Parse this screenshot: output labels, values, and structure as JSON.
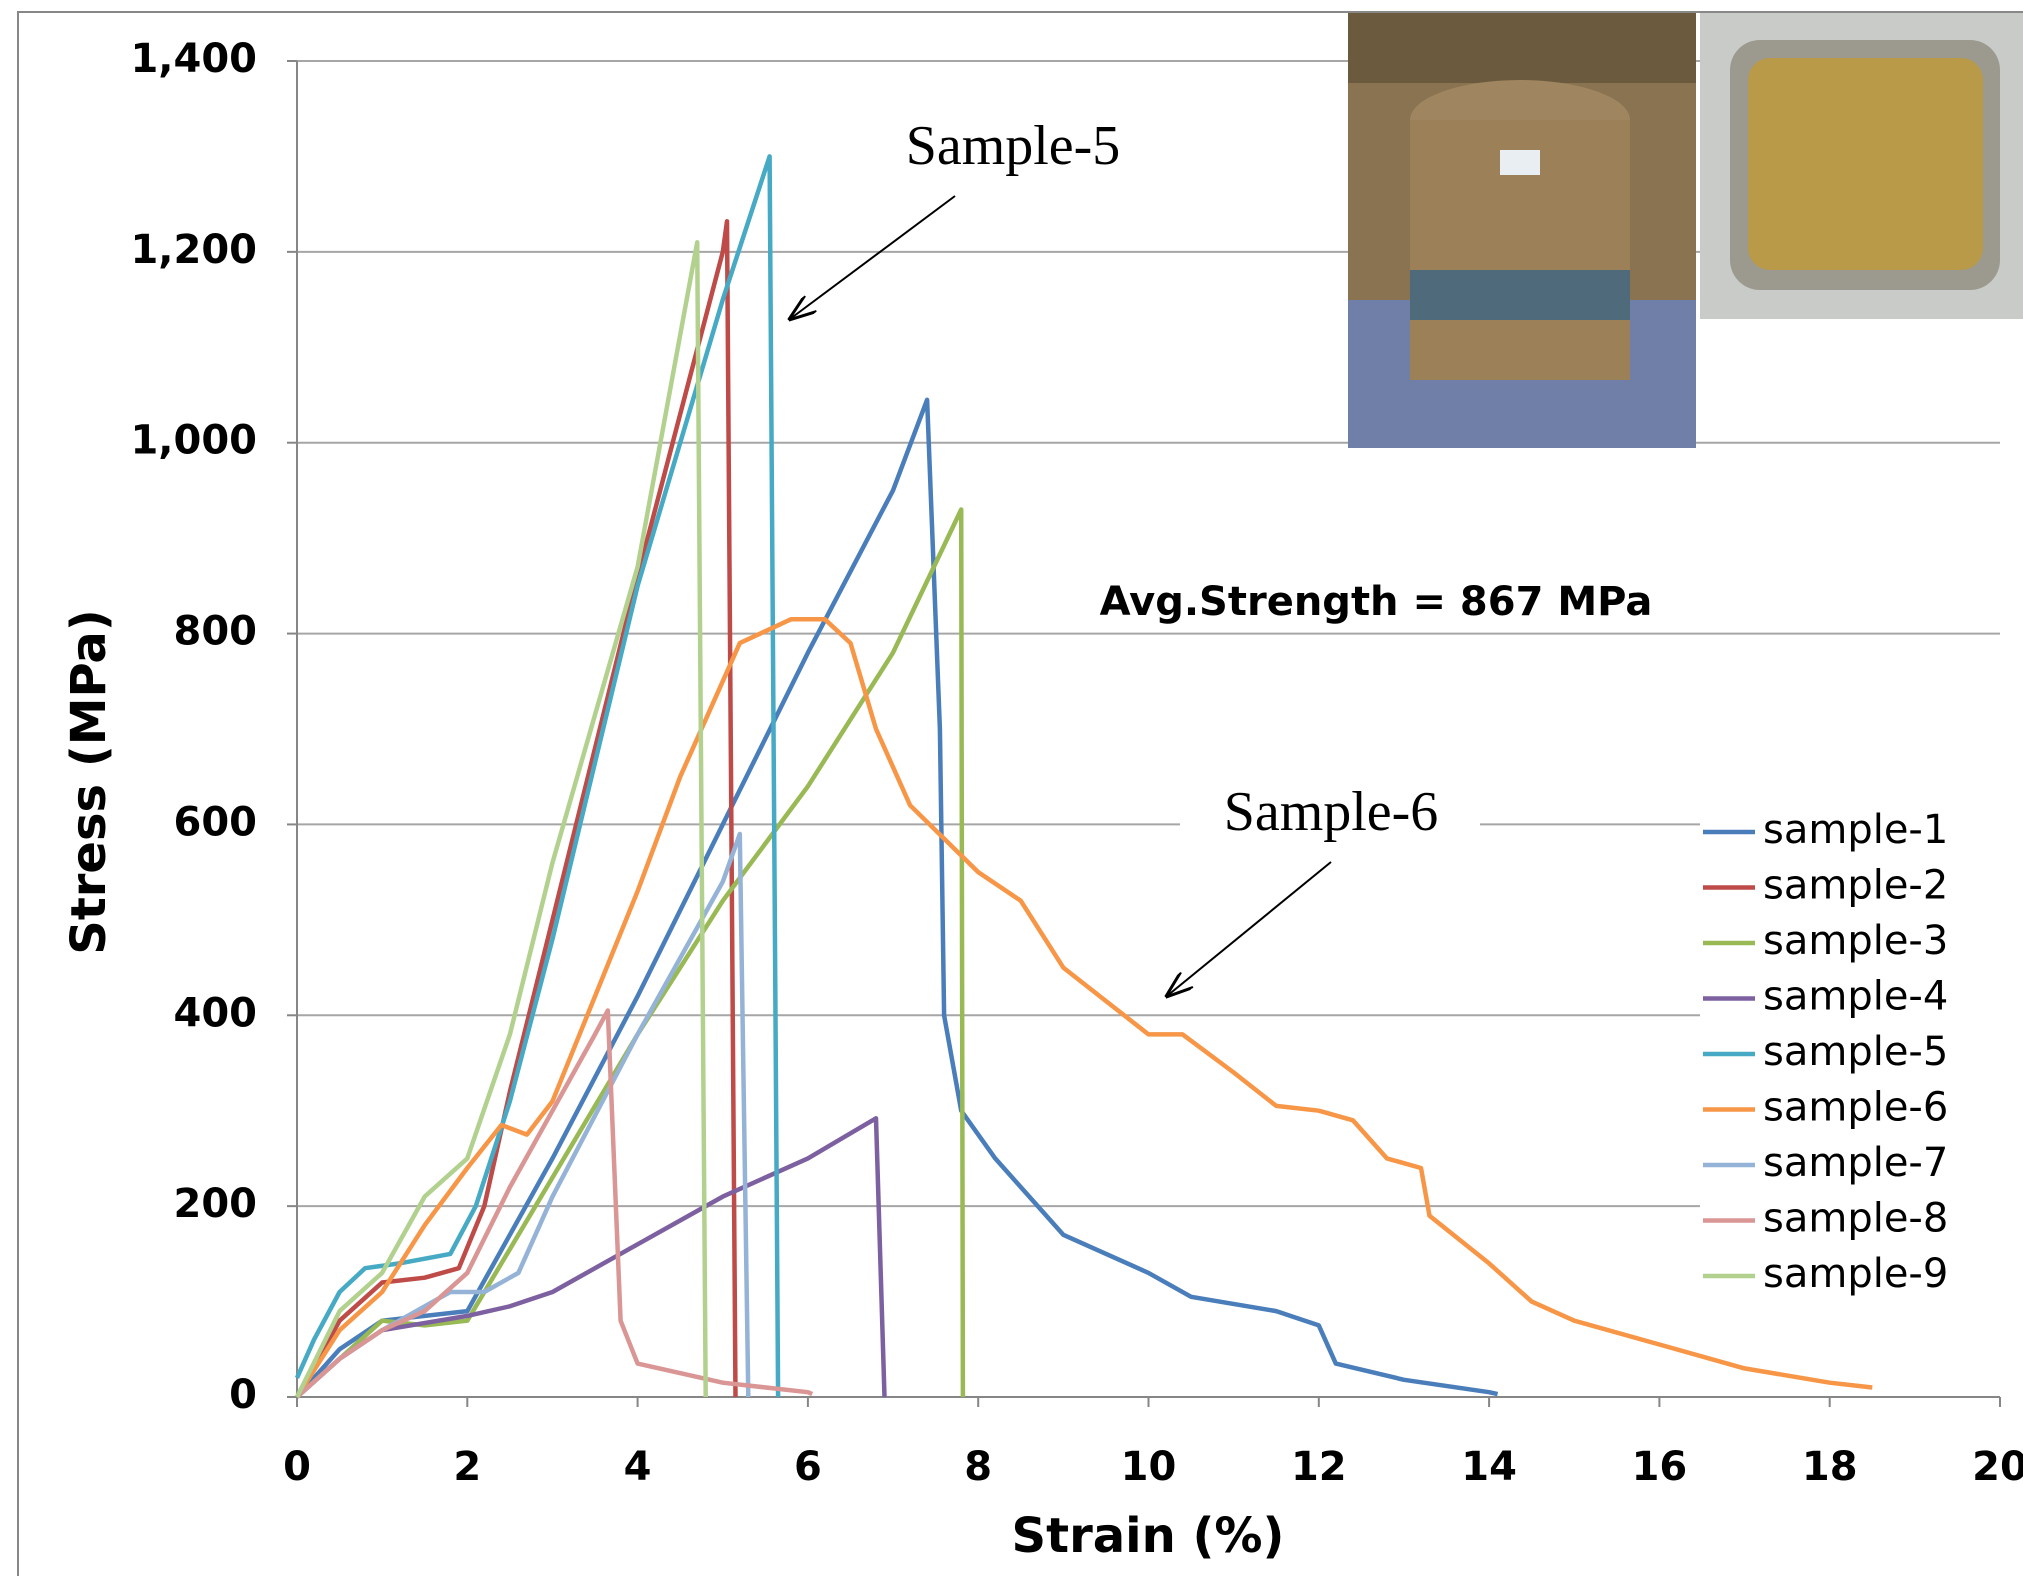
{
  "chart_data": {
    "type": "line",
    "x_label": "Strain (%)",
    "y_label": "Stress (MPa)",
    "xlim": [
      0,
      20
    ],
    "xticks": [
      0,
      2,
      4,
      6,
      8,
      10,
      12,
      14,
      16,
      18,
      20
    ],
    "ylim": [
      0,
      1400
    ],
    "yticks": [
      0,
      200,
      400,
      600,
      800,
      {
        "value": 1000,
        "label": "1,000"
      },
      {
        "value": 1200,
        "label": "1,200"
      },
      {
        "value": 1400,
        "label": "1,400"
      }
    ],
    "grid": true,
    "legend": "right",
    "annotations": [
      "Sample-5",
      "Sample-6",
      "Avg.Strength = 867 MPa"
    ],
    "series": [
      {
        "name": "sample-1",
        "color": "#4a7ebb",
        "x": [
          0,
          0.5,
          1,
          2,
          3,
          4,
          5,
          6,
          7,
          7.4,
          7.55,
          7.6,
          7.8,
          8.2,
          8.5,
          9,
          10,
          10.5,
          11.5,
          12,
          12.2,
          13,
          14,
          14.1
        ],
        "values": [
          0,
          50,
          80,
          90,
          250,
          420,
          600,
          780,
          950,
          1045,
          700,
          400,
          300,
          250,
          220,
          170,
          130,
          105,
          90,
          75,
          35,
          18,
          5,
          3
        ]
      },
      {
        "name": "sample-2",
        "color": "#be4b48",
        "x": [
          0,
          0.5,
          1,
          1.5,
          1.9,
          2.2,
          2.5,
          3,
          4,
          5,
          5.05,
          5.15
        ],
        "values": [
          0,
          80,
          120,
          125,
          135,
          200,
          320,
          500,
          860,
          1200,
          1232,
          0
        ]
      },
      {
        "name": "sample-3",
        "color": "#98b954",
        "x": [
          0,
          1,
          1.5,
          2,
          3,
          4,
          5,
          6,
          7,
          7.8,
          7.82
        ],
        "values": [
          0,
          80,
          75,
          80,
          230,
          380,
          520,
          640,
          780,
          930,
          0
        ]
      },
      {
        "name": "sample-4",
        "color": "#7d60a0",
        "x": [
          0,
          0.5,
          1,
          2,
          2.5,
          3,
          4,
          5,
          6,
          6.8,
          6.9
        ],
        "values": [
          0,
          40,
          70,
          85,
          95,
          110,
          160,
          210,
          250,
          292,
          0
        ]
      },
      {
        "name": "sample-5",
        "color": "#46aac5",
        "x": [
          0,
          0.2,
          0.5,
          0.8,
          1.2,
          1.8,
          2.1,
          2.5,
          3,
          4,
          5,
          5.55,
          5.65
        ],
        "values": [
          20,
          60,
          110,
          135,
          140,
          150,
          200,
          310,
          480,
          850,
          1150,
          1300,
          0
        ]
      },
      {
        "name": "sample-6",
        "color": "#f79646",
        "x": [
          0,
          0.5,
          1,
          1.5,
          2,
          2.4,
          2.7,
          3,
          4,
          4.5,
          5.2,
          5.8,
          6.2,
          6.5,
          6.8,
          7.2,
          8,
          8.5,
          9,
          10,
          10.4,
          11,
          11.5,
          12,
          12.4,
          12.8,
          13.2,
          13.3,
          14,
          14.5,
          15,
          16,
          17,
          18,
          18.5
        ],
        "values": [
          0,
          70,
          110,
          180,
          240,
          285,
          275,
          310,
          530,
          650,
          790,
          815,
          815,
          790,
          700,
          620,
          550,
          520,
          450,
          380,
          380,
          340,
          305,
          300,
          290,
          250,
          240,
          190,
          140,
          100,
          80,
          55,
          30,
          15,
          10
        ]
      },
      {
        "name": "sample-7",
        "color": "#95b3d7",
        "x": [
          0,
          0.5,
          1,
          1.5,
          1.8,
          2.2,
          2.6,
          3,
          4,
          5,
          5.2,
          5.3
        ],
        "values": [
          0,
          40,
          70,
          95,
          110,
          110,
          130,
          210,
          380,
          540,
          590,
          0
        ]
      },
      {
        "name": "sample-8",
        "color": "#d99694",
        "x": [
          0,
          0.5,
          1,
          1.5,
          2,
          2.5,
          3,
          3.5,
          3.65,
          3.8,
          4,
          5,
          6,
          6.05
        ],
        "values": [
          0,
          40,
          70,
          90,
          130,
          220,
          300,
          380,
          405,
          80,
          35,
          15,
          5,
          3
        ]
      },
      {
        "name": "sample-9",
        "color": "#b3d18e",
        "x": [
          0,
          0.5,
          1,
          1.5,
          2,
          2.5,
          3,
          4,
          4.7,
          4.8
        ],
        "values": [
          0,
          90,
          130,
          210,
          250,
          380,
          560,
          870,
          1210,
          0
        ]
      }
    ]
  }
}
